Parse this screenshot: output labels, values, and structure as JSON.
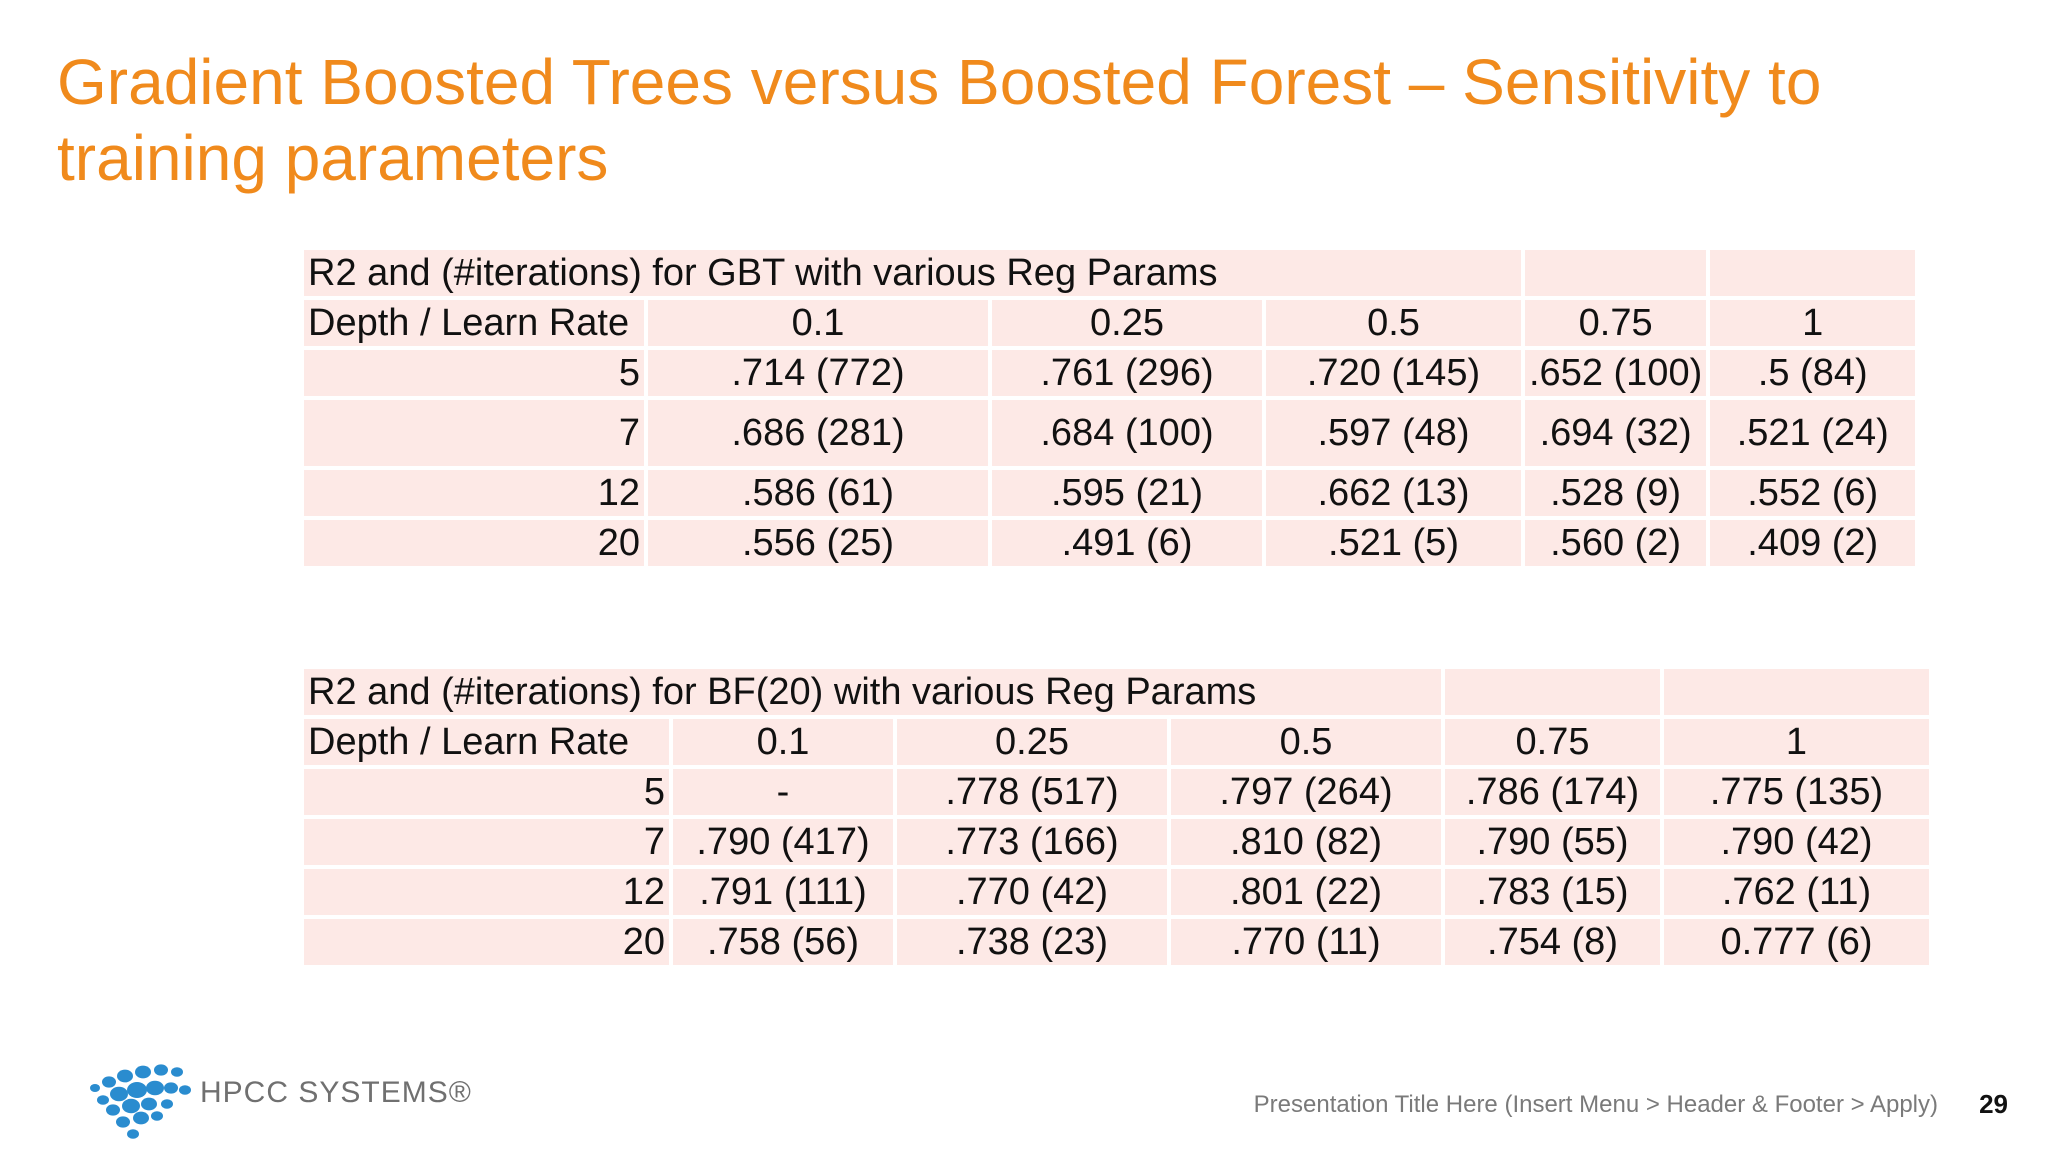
{
  "title": "Gradient Boosted Trees versus Boosted Forest – Sensitivity to training parameters",
  "table_gbt": {
    "caption": "R2 and (#iterations) for GBT with various Reg Params",
    "corner": "Depth / Learn Rate",
    "learn_rates": [
      "0.1",
      "0.25",
      "0.5",
      "0.75",
      "1"
    ],
    "rows": [
      {
        "depth": "5",
        "cells": [
          ".714 (772)",
          ".761 (296)",
          ".720 (145)",
          ".652 (100)",
          ".5 (84)"
        ]
      },
      {
        "depth": "7",
        "cells": [
          ".686 (281)",
          ".684 (100)",
          ".597 (48)",
          ".694 (32)",
          ".521 (24)"
        ]
      },
      {
        "depth": "12",
        "cells": [
          ".586 (61)",
          ".595 (21)",
          ".662 (13)",
          ".528 (9)",
          ".552 (6)"
        ]
      },
      {
        "depth": "20",
        "cells": [
          ".556 (25)",
          ".491 (6)",
          ".521 (5)",
          ".560 (2)",
          ".409 (2)"
        ]
      }
    ]
  },
  "table_bf": {
    "caption": "R2 and (#iterations) for BF(20) with various Reg Params",
    "corner": "Depth / Learn Rate",
    "learn_rates": [
      "0.1",
      "0.25",
      "0.5",
      "0.75",
      "1"
    ],
    "rows": [
      {
        "depth": "5",
        "cells": [
          "-",
          ".778 (517)",
          ".797 (264)",
          ".786 (174)",
          ".775 (135)"
        ]
      },
      {
        "depth": "7",
        "cells": [
          ".790 (417)",
          ".773 (166)",
          ".810 (82)",
          ".790 (55)",
          ".790 (42)"
        ]
      },
      {
        "depth": "12",
        "cells": [
          ".791 (111)",
          ".770 (42)",
          ".801 (22)",
          ".783 (15)",
          ".762 (11)"
        ]
      },
      {
        "depth": "20",
        "cells": [
          ".758 (56)",
          ".738 (23)",
          ".770 (11)",
          ".754 (8)",
          "0.777 (6)"
        ]
      }
    ]
  },
  "logo": {
    "text": "HPCC SYSTEMS®",
    "color": "#2a8ccf"
  },
  "footer": {
    "text": "Presentation Title Here (Insert Menu > Header & Footer > Apply)",
    "page": "29"
  },
  "colors": {
    "title": "#f08a1c",
    "cell_bg": "#fde9e6"
  }
}
